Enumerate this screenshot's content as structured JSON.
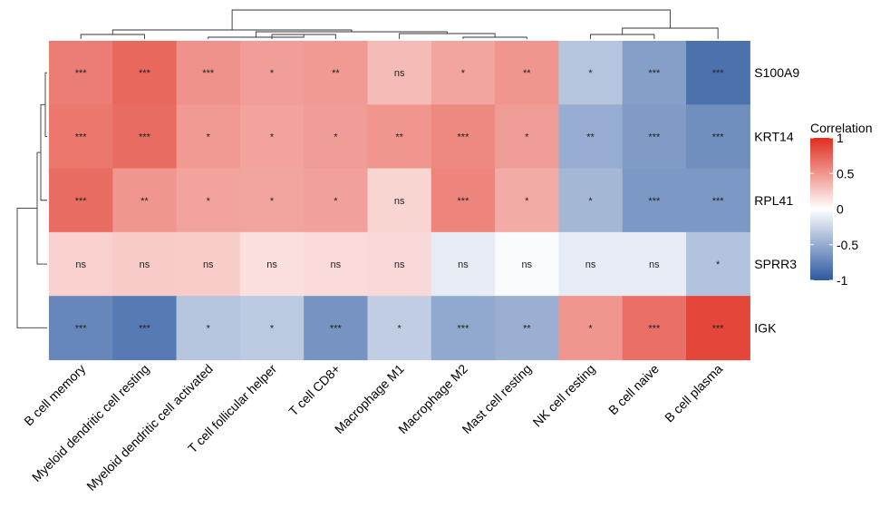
{
  "chart_data": {
    "type": "heatmap",
    "columns": [
      "B cell memory",
      "Myeloid dendritic cell resting",
      "Myeloid dendritic cell activated",
      "T cell follicular helper",
      "T cell CD8+",
      "Macrophage M1",
      "Macrophage M2",
      "Mast cell resting",
      "NK cell resting",
      "B cell naive",
      "B cell plasma"
    ],
    "rows": [
      "S100A9",
      "KRT14",
      "RPL41",
      "SPRR3",
      "IGK"
    ],
    "values": [
      [
        0.62,
        0.72,
        0.52,
        0.46,
        0.48,
        0.32,
        0.43,
        0.5,
        -0.35,
        -0.58,
        -0.85
      ],
      [
        0.65,
        0.7,
        0.48,
        0.44,
        0.47,
        0.5,
        0.56,
        0.47,
        -0.5,
        -0.6,
        -0.68
      ],
      [
        0.7,
        0.5,
        0.44,
        0.43,
        0.45,
        0.2,
        0.58,
        0.4,
        -0.43,
        -0.62,
        -0.62
      ],
      [
        0.22,
        0.25,
        0.24,
        0.15,
        0.17,
        0.18,
        -0.12,
        -0.03,
        -0.12,
        -0.12,
        -0.36
      ],
      [
        -0.72,
        -0.8,
        -0.35,
        -0.32,
        -0.65,
        -0.3,
        -0.52,
        -0.48,
        0.5,
        0.68,
        0.88
      ]
    ],
    "significance": [
      [
        "***",
        "***",
        "***",
        "*",
        "**",
        "ns",
        "*",
        "**",
        "*",
        "***",
        "***"
      ],
      [
        "***",
        "***",
        "*",
        "*",
        "*",
        "**",
        "***",
        "*",
        "**",
        "***",
        "***"
      ],
      [
        "***",
        "**",
        "*",
        "*",
        "*",
        "ns",
        "***",
        "*",
        "*",
        "***",
        "***"
      ],
      [
        "ns",
        "ns",
        "ns",
        "ns",
        "ns",
        "ns",
        "ns",
        "ns",
        "ns",
        "ns",
        "*"
      ],
      [
        "***",
        "***",
        "*",
        "*",
        "***",
        "*",
        "***",
        "**",
        "*",
        "***",
        "***"
      ]
    ],
    "legend": {
      "title": "Correlation",
      "ticks": [
        1,
        0.5,
        0,
        -0.5,
        -1
      ],
      "tick_labels": [
        "1",
        "0.5",
        "0",
        "-0.5",
        "-1"
      ],
      "range": [
        -1,
        1
      ]
    },
    "colors": {
      "low": "#2c59a0",
      "mid": "#ffffff",
      "high": "#e02d1f"
    },
    "row_dendrogram": true,
    "column_dendrogram": true
  }
}
